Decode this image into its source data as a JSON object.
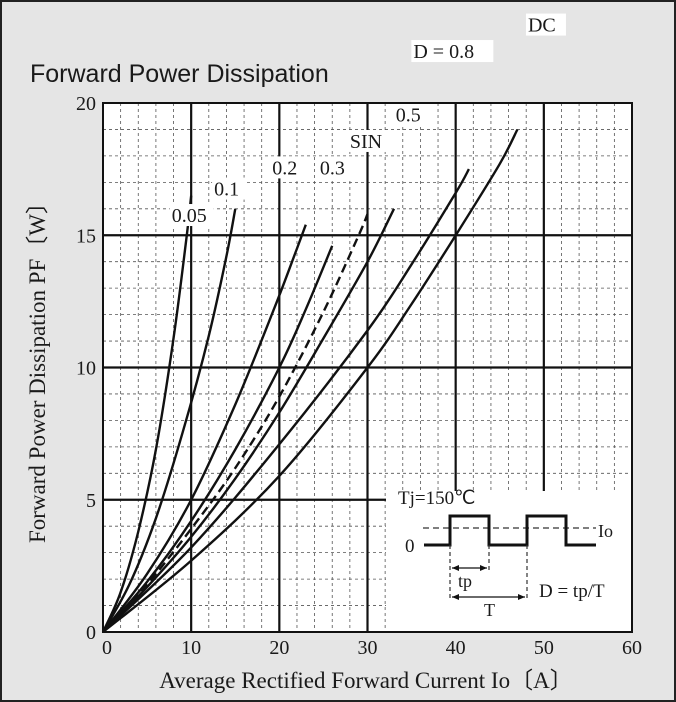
{
  "chart_data": {
    "type": "line",
    "title": "Forward Power Dissipation",
    "xlabel": "Average Rectified Forward Current  Io〔A〕",
    "ylabel": "Forward Power Dissipation  PF〔W〕",
    "xlim": [
      0,
      60
    ],
    "ylim": [
      0,
      20
    ],
    "x_ticks": [
      "0",
      "10",
      "20",
      "30",
      "40",
      "50",
      "60"
    ],
    "y_ticks": [
      "0",
      "5",
      "10",
      "15",
      "20"
    ],
    "grid": true,
    "series": [
      {
        "name": "0.05",
        "dashed": false,
        "points": [
          [
            0,
            0
          ],
          [
            2,
            1.5
          ],
          [
            4,
            3.8
          ],
          [
            6,
            6.9
          ],
          [
            8,
            11.1
          ],
          [
            9.5,
            15.0
          ],
          [
            10,
            16.5
          ]
        ]
      },
      {
        "name": "0.1",
        "dashed": false,
        "points": [
          [
            0,
            0
          ],
          [
            3,
            1.8
          ],
          [
            6,
            4.3
          ],
          [
            9,
            7.5
          ],
          [
            12,
            11.2
          ],
          [
            14,
            14.2
          ],
          [
            15,
            16.0
          ]
        ]
      },
      {
        "name": "0.2",
        "dashed": false,
        "points": [
          [
            0,
            0
          ],
          [
            5,
            2.2
          ],
          [
            10,
            5.0
          ],
          [
            15,
            8.6
          ],
          [
            19.5,
            12.3
          ],
          [
            22,
            14.5
          ],
          [
            23,
            15.4
          ]
        ]
      },
      {
        "name": "0.3",
        "dashed": false,
        "points": [
          [
            0,
            0
          ],
          [
            5,
            1.9
          ],
          [
            10,
            4.2
          ],
          [
            15,
            6.9
          ],
          [
            20,
            10.0
          ],
          [
            23,
            12.2
          ],
          [
            26,
            14.6
          ]
        ]
      },
      {
        "name": "SIN",
        "dashed": true,
        "points": [
          [
            0,
            0
          ],
          [
            5,
            1.8
          ],
          [
            10,
            3.9
          ],
          [
            15,
            6.2
          ],
          [
            20,
            8.9
          ],
          [
            25,
            12.1
          ],
          [
            29,
            15.0
          ],
          [
            30,
            15.8
          ]
        ]
      },
      {
        "name": "0.5",
        "dashed": false,
        "points": [
          [
            0,
            0
          ],
          [
            5,
            1.7
          ],
          [
            10,
            3.6
          ],
          [
            15,
            5.8
          ],
          [
            20,
            8.3
          ],
          [
            25,
            11.1
          ],
          [
            30,
            14.0
          ],
          [
            33,
            16.0
          ]
        ]
      },
      {
        "name": "D = 0.8",
        "dashed": false,
        "points": [
          [
            0,
            0
          ],
          [
            10,
            3.2
          ],
          [
            20,
            7.1
          ],
          [
            30,
            11.4
          ],
          [
            35,
            13.9
          ],
          [
            40,
            16.6
          ],
          [
            41.5,
            17.5
          ]
        ]
      },
      {
        "name": "DC",
        "dashed": false,
        "points": [
          [
            0,
            0
          ],
          [
            10,
            2.7
          ],
          [
            20,
            5.9
          ],
          [
            30,
            10.0
          ],
          [
            35,
            12.4
          ],
          [
            40,
            15.0
          ],
          [
            45,
            17.7
          ],
          [
            47,
            19.0
          ]
        ]
      }
    ],
    "curve_labels": [
      "0.05",
      "0.1",
      "0.2",
      "0.3",
      "SIN",
      "0.5",
      "D = 0.8",
      "DC"
    ],
    "annotations": {
      "tj": "Tj=150℃",
      "zero": "0",
      "io": "Io",
      "tp": "tp",
      "period": "T",
      "duty": "D = tp/T"
    }
  }
}
